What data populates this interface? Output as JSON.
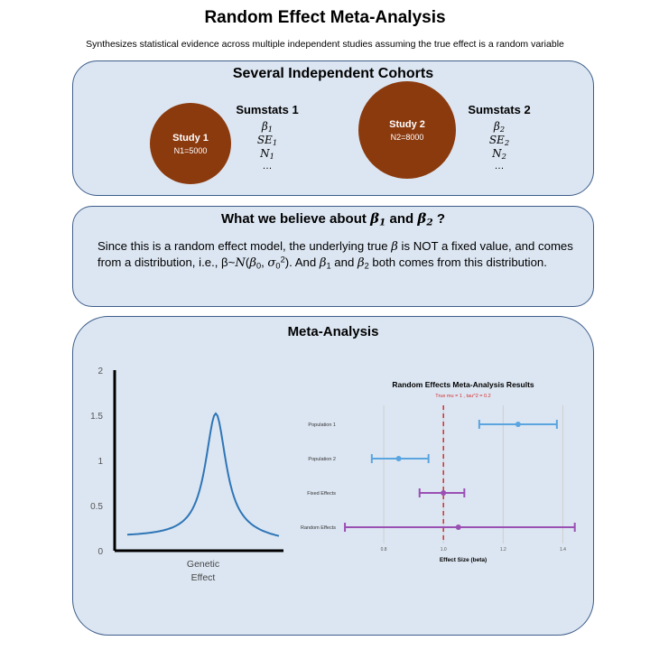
{
  "title": "Random Effect Meta-Analysis",
  "subtitle": "Synthesizes statistical evidence across multiple independent studies assuming the true effect is a random variable",
  "cohorts": {
    "heading": "Several Independent Cohorts",
    "study1": {
      "name": "Study 1",
      "n": "N1=5000"
    },
    "study2": {
      "name": "Study 2",
      "n": "N2=8000"
    },
    "sumstats1": {
      "heading": "Sumstats 1",
      "beta": "β",
      "se": "SE",
      "n": "N",
      "sub": "1",
      "more": "…"
    },
    "sumstats2": {
      "heading": "Sumstats 2",
      "beta": "β",
      "se": "SE",
      "n": "N",
      "sub": "2",
      "more": "…"
    },
    "circle_color": "#8b3a0e"
  },
  "belief": {
    "heading_pre": "What we believe about",
    "heading_and": "and",
    "heading_q": "?",
    "t1": "Since this is a random effect model, the underlying true",
    "t2": "is NOT a fixed value, and comes from a distribution, i.e., β~",
    "t3": ". And",
    "t4": "and",
    "t5": "both comes from this distribution."
  },
  "meta": {
    "heading": "Meta-Analysis",
    "density": {
      "y_ticks": [
        "0",
        "0.5",
        "1",
        "1.5",
        "2"
      ],
      "ylim": [
        0,
        2
      ],
      "xlabel_line1": "Genetic",
      "xlabel_line2": "Effect",
      "curve_color": "#2e75b6"
    }
  },
  "chart_data": {
    "type": "scatter",
    "title": "Random Effects Meta-Analysis Results",
    "subtitle": "True mu = 1 , tau^2 = 0.2",
    "xlabel": "Effect Size (beta)",
    "xlim": [
      0.7,
      1.45
    ],
    "x_ticks": [
      "0.8",
      "1.0",
      "1.2",
      "1.4"
    ],
    "x_tick_values": [
      0.8,
      1.0,
      1.2,
      1.4
    ],
    "true_mu": 1.0,
    "rows": [
      {
        "label": "Population 1",
        "estimate": 1.25,
        "lower": 1.12,
        "upper": 1.38,
        "color": "#5aa5e0"
      },
      {
        "label": "Population 2",
        "estimate": 0.85,
        "lower": 0.76,
        "upper": 0.95,
        "color": "#5aa5e0"
      },
      {
        "label": "Fixed Effects",
        "estimate": 1.0,
        "lower": 0.92,
        "upper": 1.07,
        "color": "#9a4fb3"
      },
      {
        "label": "Random Effects",
        "estimate": 1.05,
        "lower": 0.67,
        "upper": 1.44,
        "color": "#9a4fb3"
      }
    ],
    "mu_color": "#d32f2f",
    "grid": true
  }
}
